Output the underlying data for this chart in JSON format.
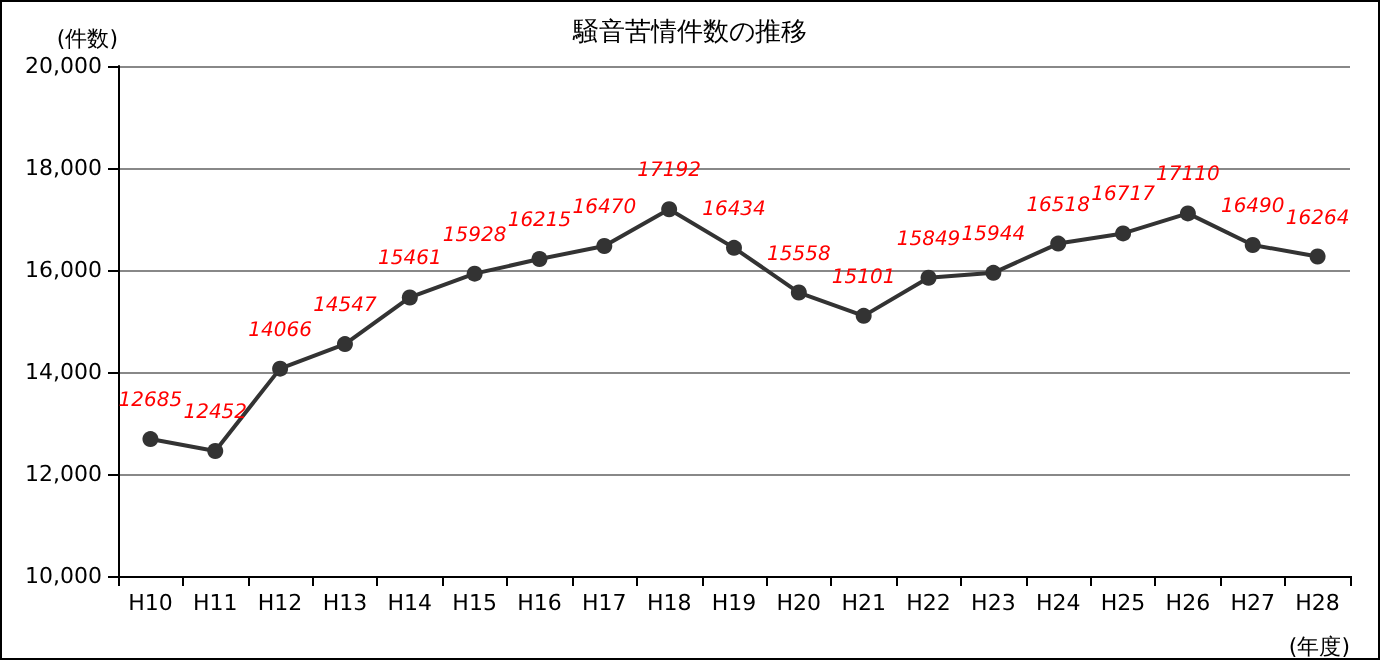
{
  "chart_data": {
    "type": "line",
    "title": "騒音苦情件数の推移",
    "ylabel": "(件数)",
    "xlabel": "(年度)",
    "categories": [
      "H10",
      "H11",
      "H12",
      "H13",
      "H14",
      "H15",
      "H16",
      "H17",
      "H18",
      "H19",
      "H20",
      "H21",
      "H22",
      "H23",
      "H24",
      "H25",
      "H26",
      "H27",
      "H28"
    ],
    "series": [
      {
        "color": "#333333",
        "values": [
          12685,
          12452,
          14066,
          14547,
          15461,
          15928,
          16215,
          16470,
          17192,
          16434,
          15558,
          15101,
          15849,
          15944,
          16518,
          16717,
          17110,
          16490,
          16264
        ]
      }
    ],
    "ylim": [
      10000,
      20000
    ],
    "yticks": [
      {
        "value": 10000,
        "label": "10,000"
      },
      {
        "value": 12000,
        "label": "12,000"
      },
      {
        "value": 14000,
        "label": "14,000"
      },
      {
        "value": 16000,
        "label": "16,000"
      },
      {
        "value": 18000,
        "label": "18,000"
      },
      {
        "value": 20000,
        "label": "20,000"
      }
    ],
    "grid": "y",
    "marker": "circle",
    "line_style": "solid",
    "data_labels": true
  }
}
